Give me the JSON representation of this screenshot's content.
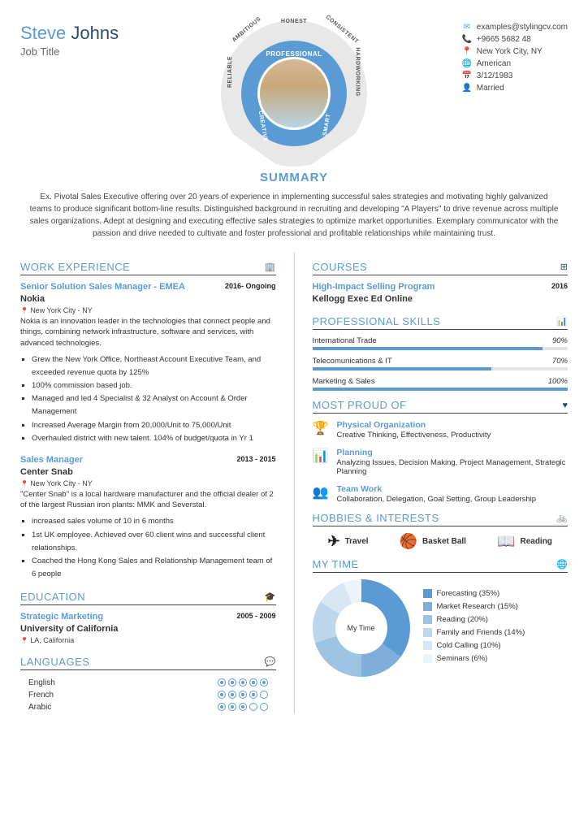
{
  "name": {
    "first": "Steve",
    "last": "Johns"
  },
  "job_title": "Job Title",
  "contact": {
    "email": "examples@stylingcv.com",
    "phone": "+9665 5682 48",
    "location": "New York City, NY",
    "nationality": "American",
    "dob": "3/12/1983",
    "marital": "Married"
  },
  "ring_words": {
    "top": "HONEST",
    "tl": "AMBITIOUS",
    "tr": "CONSISTENT",
    "l": "RELIABLE",
    "r": "HARDWORKING",
    "bl": "CREATIVE",
    "br": "SMART",
    "inner": "PROFESSIONAL"
  },
  "summary_heading": "SUMMARY",
  "summary": "Ex. Pivotal Sales Executive offering over 20 years of experience in implementing successful sales strategies and motivating highly galvanized teams to produce significant bottom-line results. Distinguished background in recruiting and developing \"A Players\" to drive revenue across multiple sales organizations. Adept at designing and executing effective sales strategies to optimize market opportunities. Exemplary communicator with the passion and drive needed to cultivate and foster professional and profitable relationships while maintaining trust.",
  "sections": {
    "work": "WORK EXPERIENCE",
    "education": "EDUCATION",
    "languages": "LANGUAGES",
    "courses": "COURSES",
    "skills": "PROFESSIONAL SKILLS",
    "proud": "MOST PROUD OF",
    "hobbies": "HOBBIES & INTERESTS",
    "mytime": "MY TIME"
  },
  "jobs": [
    {
      "title": "Senior Solution Sales Manager - EMEA",
      "dates": "2016- Ongoing",
      "company": "Nokia",
      "location": "New York City - NY",
      "desc": "Nokia is an innovation leader in the technologies that connect people and things, combining network infrastructure, software and services, with advanced technologies.",
      "bullets": [
        "Grew the New York Office, Northeast Account Executive Team, and exceeded revenue quota by 125%",
        "100% commission based job.",
        "Managed and led 4 Specialist & 32 Analyst on Account & Order Management",
        "Increased Average Margin from 20,000/Unit to 75,000/Unit",
        "Overhauled district with new talent. 104% of budget/quota in Yr 1"
      ]
    },
    {
      "title": "Sales Manager",
      "dates": "2013 - 2015",
      "company": "Center Snab",
      "location": "New York City - NY",
      "desc": "\"Center Snab\" is a local hardware manufacturer and the official dealer of 2 of the largest Russian iron plants: MMK and Severstal.",
      "bullets": [
        "increased sales volume of 10 in 6 months",
        "1st UK employee. Achieved over 60 client wins and successful client relationships.",
        "Coached the Hong Kong Sales and Relationship Management team of 6 people"
      ]
    }
  ],
  "education": {
    "title": "Strategic Marketing",
    "dates": "2005 - 2009",
    "school": "University of California",
    "location": "LA, California"
  },
  "languages": [
    {
      "name": "English",
      "level": 5
    },
    {
      "name": "French",
      "level": 4
    },
    {
      "name": "Arabic",
      "level": 3
    }
  ],
  "courses": {
    "title": "High-Impact Selling Program",
    "date": "2016",
    "org": "Kellogg Exec Ed Online"
  },
  "skills": [
    {
      "name": "International Trade",
      "pct": 90
    },
    {
      "name": "Telecomunications & IT",
      "pct": 70
    },
    {
      "name": "Marketing & Sales",
      "pct": 100
    }
  ],
  "proud": [
    {
      "icon": "🏆",
      "title": "Physical Organization",
      "desc": "Creative Thinking, Effectiveness, Productivity"
    },
    {
      "icon": "📊",
      "title": "Planning",
      "desc": "Analyzing Issues, Decision Making, Project Management, Strategic Planning"
    },
    {
      "icon": "👥",
      "title": "Team Work",
      "desc": "Collaboration, Delegation, Goal Setting, Group Leadership"
    }
  ],
  "hobbies": [
    {
      "icon": "✈",
      "name": "Travel"
    },
    {
      "icon": "🏀",
      "name": "Basket Ball"
    },
    {
      "icon": "📖",
      "name": "Reading"
    }
  ],
  "mytime": {
    "label": "My Time",
    "items": [
      {
        "name": "Forecasting (35%)",
        "pct": 35,
        "color": "#5a9bd5"
      },
      {
        "name": "Market Research (15%)",
        "pct": 15,
        "color": "#7eaed9"
      },
      {
        "name": "Reading (20%)",
        "pct": 20,
        "color": "#9dc3e2"
      },
      {
        "name": "Family and Friends (14%)",
        "pct": 14,
        "color": "#bcd7eb"
      },
      {
        "name": "Cold Calling (10%)",
        "pct": 10,
        "color": "#d6e6f3"
      },
      {
        "name": "Seminars (6%)",
        "pct": 6,
        "color": "#ecf3fa"
      }
    ]
  },
  "colors": {
    "accent": "#5a9bd5",
    "dark": "#2a4d6e"
  }
}
